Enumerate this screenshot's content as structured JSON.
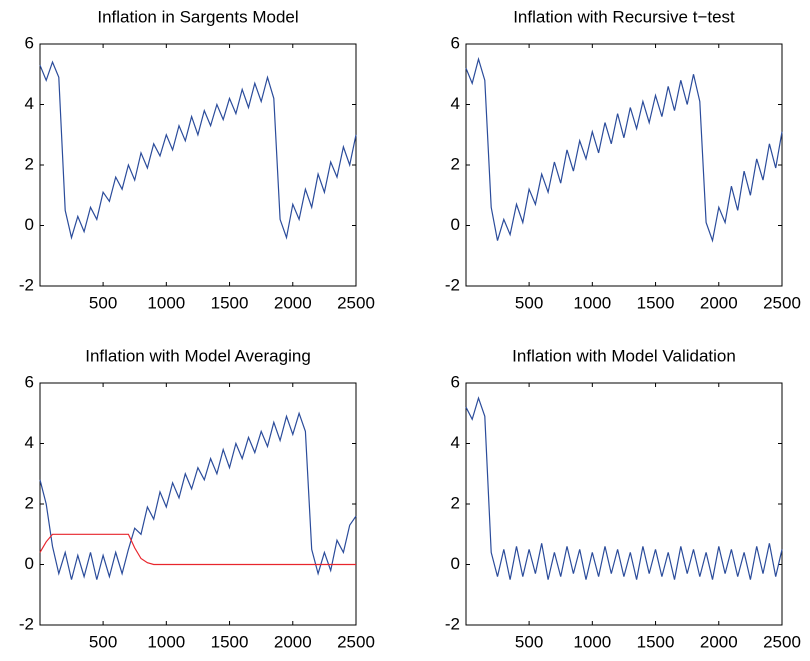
{
  "chart_data": [
    {
      "type": "line",
      "title": "Inflation in Sargents Model",
      "x": [
        1,
        50,
        100,
        150,
        200,
        250,
        300,
        350,
        400,
        450,
        500,
        550,
        600,
        650,
        700,
        750,
        800,
        850,
        900,
        950,
        1000,
        1050,
        1100,
        1150,
        1200,
        1250,
        1300,
        1350,
        1400,
        1450,
        1500,
        1550,
        1600,
        1650,
        1700,
        1750,
        1800,
        1850,
        1900,
        1950,
        2000,
        2050,
        2100,
        2150,
        2200,
        2250,
        2300,
        2350,
        2400,
        2450,
        2500
      ],
      "series": [
        {
          "color": "#2b4c9b",
          "values": [
            5.3,
            4.8,
            5.4,
            4.9,
            0.5,
            -0.4,
            0.3,
            -0.2,
            0.6,
            0.2,
            1.1,
            0.8,
            1.6,
            1.2,
            2.0,
            1.5,
            2.4,
            1.9,
            2.7,
            2.3,
            3.0,
            2.5,
            3.3,
            2.8,
            3.6,
            3.0,
            3.8,
            3.3,
            4.0,
            3.5,
            4.2,
            3.7,
            4.5,
            3.9,
            4.7,
            4.1,
            4.9,
            4.2,
            0.2,
            -0.4,
            0.7,
            0.2,
            1.2,
            0.6,
            1.7,
            1.1,
            2.1,
            1.6,
            2.6,
            2.0,
            3.0
          ]
        }
      ],
      "xlim": [
        1,
        2500
      ],
      "ylim": [
        -2,
        6
      ],
      "xticks": [
        500,
        1000,
        1500,
        2000,
        2500
      ],
      "yticks": [
        -2,
        0,
        2,
        4,
        6
      ]
    },
    {
      "type": "line",
      "title": "Inflation with Recursive t−test",
      "x": [
        1,
        50,
        100,
        150,
        200,
        250,
        300,
        350,
        400,
        450,
        500,
        550,
        600,
        650,
        700,
        750,
        800,
        850,
        900,
        950,
        1000,
        1050,
        1100,
        1150,
        1200,
        1250,
        1300,
        1350,
        1400,
        1450,
        1500,
        1550,
        1600,
        1650,
        1700,
        1750,
        1800,
        1850,
        1900,
        1950,
        2000,
        2050,
        2100,
        2150,
        2200,
        2250,
        2300,
        2350,
        2400,
        2450,
        2500
      ],
      "series": [
        {
          "color": "#2b4c9b",
          "values": [
            5.2,
            4.7,
            5.5,
            4.8,
            0.6,
            -0.5,
            0.2,
            -0.3,
            0.7,
            0.1,
            1.2,
            0.7,
            1.7,
            1.1,
            2.1,
            1.4,
            2.5,
            1.8,
            2.8,
            2.2,
            3.1,
            2.4,
            3.4,
            2.7,
            3.7,
            2.9,
            3.9,
            3.2,
            4.1,
            3.4,
            4.3,
            3.6,
            4.6,
            3.8,
            4.8,
            4.0,
            5.0,
            4.1,
            0.1,
            -0.5,
            0.6,
            0.1,
            1.3,
            0.5,
            1.8,
            1.0,
            2.2,
            1.5,
            2.7,
            1.9,
            3.1
          ]
        }
      ],
      "xlim": [
        1,
        2500
      ],
      "ylim": [
        -2,
        6
      ],
      "xticks": [
        500,
        1000,
        1500,
        2000,
        2500
      ],
      "yticks": [
        -2,
        0,
        2,
        4,
        6
      ]
    },
    {
      "type": "line",
      "title": "Inflation with Model Averaging",
      "x": [
        1,
        50,
        100,
        150,
        200,
        250,
        300,
        350,
        400,
        450,
        500,
        550,
        600,
        650,
        700,
        750,
        800,
        850,
        900,
        950,
        1000,
        1050,
        1100,
        1150,
        1200,
        1250,
        1300,
        1350,
        1400,
        1450,
        1500,
        1550,
        1600,
        1650,
        1700,
        1750,
        1800,
        1850,
        1900,
        1950,
        2000,
        2050,
        2100,
        2150,
        2200,
        2250,
        2300,
        2350,
        2400,
        2450,
        2500
      ],
      "series": [
        {
          "color": "#2b4c9b",
          "values": [
            2.8,
            2.0,
            0.6,
            -0.3,
            0.4,
            -0.5,
            0.3,
            -0.4,
            0.4,
            -0.5,
            0.3,
            -0.4,
            0.4,
            -0.3,
            0.5,
            1.2,
            1.0,
            1.9,
            1.5,
            2.4,
            1.9,
            2.7,
            2.2,
            3.0,
            2.5,
            3.2,
            2.8,
            3.5,
            3.0,
            3.8,
            3.2,
            4.0,
            3.5,
            4.2,
            3.7,
            4.4,
            3.9,
            4.7,
            4.1,
            4.9,
            4.3,
            5.0,
            4.4,
            0.5,
            -0.3,
            0.4,
            -0.2,
            0.8,
            0.4,
            1.3,
            1.6
          ]
        },
        {
          "color": "#e8262d",
          "values": [
            0.4,
            0.75,
            1,
            1,
            1,
            1,
            1,
            1,
            1,
            1,
            1,
            1,
            1,
            1,
            1,
            0.55,
            0.2,
            0.06,
            0,
            0,
            0,
            0,
            0,
            0,
            0,
            0,
            0,
            0,
            0,
            0,
            0,
            0,
            0,
            0,
            0,
            0,
            0,
            0,
            0,
            0,
            0,
            0,
            0,
            0,
            0,
            0,
            0,
            0,
            0,
            0,
            0
          ]
        }
      ],
      "xlim": [
        1,
        2500
      ],
      "ylim": [
        -2,
        6
      ],
      "xticks": [
        500,
        1000,
        1500,
        2000,
        2500
      ],
      "yticks": [
        -2,
        0,
        2,
        4,
        6
      ]
    },
    {
      "type": "line",
      "title": "Inflation with Model Validation",
      "x": [
        1,
        50,
        100,
        150,
        200,
        250,
        300,
        350,
        400,
        450,
        500,
        550,
        600,
        650,
        700,
        750,
        800,
        850,
        900,
        950,
        1000,
        1050,
        1100,
        1150,
        1200,
        1250,
        1300,
        1350,
        1400,
        1450,
        1500,
        1550,
        1600,
        1650,
        1700,
        1750,
        1800,
        1850,
        1900,
        1950,
        2000,
        2050,
        2100,
        2150,
        2200,
        2250,
        2300,
        2350,
        2400,
        2450,
        2500
      ],
      "series": [
        {
          "color": "#2b4c9b",
          "values": [
            5.2,
            4.8,
            5.5,
            4.9,
            0.4,
            -0.4,
            0.5,
            -0.5,
            0.6,
            -0.4,
            0.5,
            -0.3,
            0.7,
            -0.5,
            0.4,
            -0.4,
            0.6,
            -0.3,
            0.5,
            -0.5,
            0.4,
            -0.4,
            0.6,
            -0.3,
            0.5,
            -0.4,
            0.4,
            -0.5,
            0.6,
            -0.3,
            0.5,
            -0.4,
            0.4,
            -0.5,
            0.6,
            -0.3,
            0.5,
            -0.4,
            0.4,
            -0.5,
            0.6,
            -0.3,
            0.5,
            -0.4,
            0.4,
            -0.5,
            0.6,
            -0.3,
            0.7,
            -0.4,
            0.5
          ]
        }
      ],
      "xlim": [
        1,
        2500
      ],
      "ylim": [
        -2,
        6
      ],
      "xticks": [
        500,
        1000,
        1500,
        2000,
        2500
      ],
      "yticks": [
        -2,
        0,
        2,
        4,
        6
      ]
    }
  ]
}
